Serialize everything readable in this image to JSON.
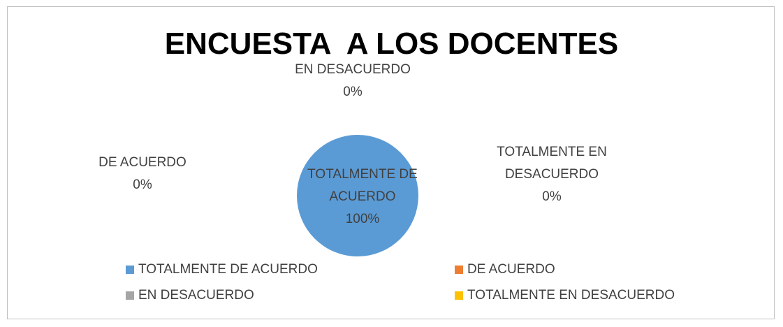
{
  "chart_data": {
    "type": "pie",
    "title": "ENCUESTA  A LOS DOCENTES",
    "categories": [
      "TOTALMENTE DE ACUERDO",
      "DE ACUERDO",
      "EN DESACUERDO",
      "TOTALMENTE EN DESACUERDO"
    ],
    "values": [
      100,
      0,
      0,
      0
    ],
    "value_labels": [
      "100%",
      "0%",
      "0%",
      "0%"
    ],
    "colors": [
      "#5b9bd5",
      "#ed7d31",
      "#a5a5a5",
      "#ffc000"
    ],
    "legend": "bottom"
  }
}
